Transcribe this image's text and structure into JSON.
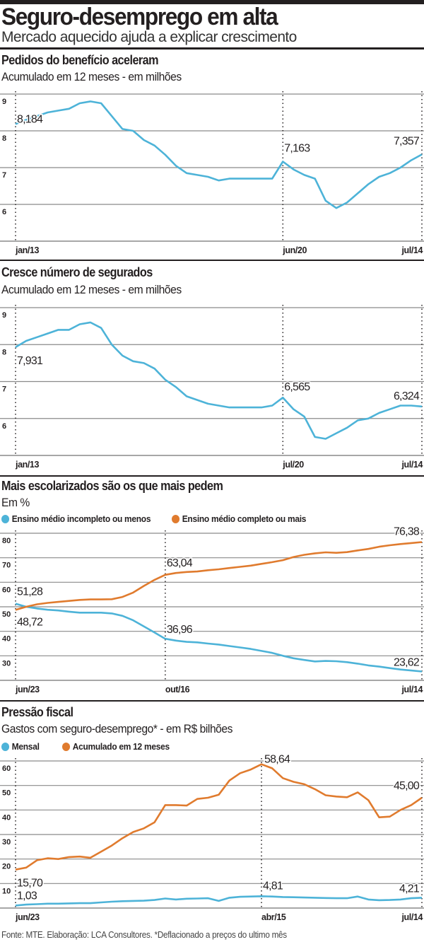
{
  "header": {
    "title": "Seguro-desemprego em alta",
    "subtitle": "Mercado aquecido ajuda a explicar crescimento"
  },
  "footer": "Fonte: MTE. Elaboração: LCA Consultores. *Deflacionado a preços do ultimo mês",
  "colors": {
    "blue": "#4db3d8",
    "orange": "#e07b2e",
    "text": "#231f20",
    "grid": "#888888"
  },
  "chart_data": [
    {
      "type": "line",
      "title": "Pedidos do benefício aceleram",
      "subtitle": "Acumulado em 12 meses - em milhões",
      "ylim": [
        5,
        9
      ],
      "yticks": [
        "9",
        "8",
        "7",
        "6"
      ],
      "ytick_values": [
        9,
        8,
        7,
        6
      ],
      "grid": true,
      "xticks": [
        {
          "index": 0,
          "label": "jan/13"
        },
        {
          "index": 25,
          "label": "jun/20"
        },
        {
          "index": 38,
          "label": "jul/14"
        }
      ],
      "series": [
        {
          "color": "#4db3d8",
          "values": [
            8.184,
            8.3,
            8.4,
            8.5,
            8.55,
            8.6,
            8.75,
            8.8,
            8.75,
            8.4,
            8.05,
            8.0,
            7.75,
            7.6,
            7.35,
            7.05,
            6.85,
            6.8,
            6.75,
            6.65,
            6.7,
            6.7,
            6.7,
            6.7,
            6.7,
            7.163,
            6.95,
            6.8,
            6.7,
            6.1,
            5.9,
            6.05,
            6.3,
            6.55,
            6.75,
            6.85,
            7.0,
            7.2,
            7.357
          ]
        }
      ],
      "annotations": [
        {
          "series": 0,
          "index": 0,
          "text": "8,184"
        },
        {
          "series": 0,
          "index": 25,
          "text": "7,163"
        },
        {
          "series": 0,
          "index": 38,
          "text": "7,357"
        }
      ]
    },
    {
      "type": "line",
      "title": "Cresce número de segurados",
      "subtitle": "Acumulado em 12 meses - em milhões",
      "ylim": [
        5,
        9
      ],
      "yticks": [
        "9",
        "8",
        "7",
        "6"
      ],
      "ytick_values": [
        9,
        8,
        7,
        6
      ],
      "grid": true,
      "xticks": [
        {
          "index": 0,
          "label": "jan/13"
        },
        {
          "index": 25,
          "label": "jul/20"
        },
        {
          "index": 38,
          "label": "jul/14"
        }
      ],
      "series": [
        {
          "color": "#4db3d8",
          "values": [
            7.931,
            8.1,
            8.2,
            8.3,
            8.4,
            8.4,
            8.55,
            8.6,
            8.45,
            8.0,
            7.7,
            7.55,
            7.5,
            7.35,
            7.05,
            6.85,
            6.6,
            6.5,
            6.4,
            6.35,
            6.3,
            6.3,
            6.3,
            6.3,
            6.35,
            6.565,
            6.25,
            6.05,
            5.5,
            5.45,
            5.6,
            5.75,
            5.95,
            6.0,
            6.15,
            6.25,
            6.35,
            6.35,
            6.324
          ]
        }
      ],
      "annotations": [
        {
          "series": 0,
          "index": 0,
          "text": "7,931"
        },
        {
          "series": 0,
          "index": 25,
          "text": "6,565"
        },
        {
          "series": 0,
          "index": 38,
          "text": "6,324"
        }
      ]
    },
    {
      "type": "line",
      "title": "Mais escolarizados são os que mais pedem",
      "subtitle": "Em %",
      "ylim": [
        20,
        80
      ],
      "yticks": [
        "80",
        "70",
        "60",
        "50",
        "40",
        "30"
      ],
      "ytick_values": [
        80,
        70,
        60,
        50,
        40,
        30
      ],
      "grid": true,
      "legend": "top-left",
      "xticks": [
        {
          "index": 0,
          "label": "jun/23"
        },
        {
          "index": 14,
          "label": "out/16"
        },
        {
          "index": 38,
          "label": "jul/14"
        }
      ],
      "series": [
        {
          "name": "Ensino médio incompleto ou menos",
          "color": "#4db3d8",
          "values": [
            51.28,
            50.0,
            49.3,
            48.8,
            48.5,
            48.0,
            47.6,
            47.6,
            47.6,
            47.3,
            46.3,
            44.5,
            42.0,
            39.5,
            36.96,
            36.2,
            35.7,
            35.5,
            35.0,
            34.6,
            34.0,
            33.4,
            32.8,
            32.0,
            31.2,
            30.0,
            29.0,
            28.3,
            27.7,
            27.9,
            27.8,
            27.4,
            26.8,
            26.1,
            25.6,
            25.0,
            24.4,
            24.0,
            23.62
          ]
        },
        {
          "name": "Ensino médio completo ou mais",
          "color": "#e07b2e",
          "values": [
            48.72,
            50.0,
            51.0,
            51.6,
            52.0,
            52.4,
            52.8,
            53.0,
            53.0,
            53.1,
            54.0,
            55.8,
            58.5,
            61.0,
            63.04,
            63.8,
            64.2,
            64.4,
            64.9,
            65.3,
            65.8,
            66.3,
            66.8,
            67.5,
            68.2,
            69.0,
            70.3,
            71.2,
            71.8,
            72.2,
            72.0,
            72.3,
            73.0,
            73.6,
            74.5,
            75.1,
            75.6,
            76.0,
            76.38
          ]
        }
      ],
      "annotations": [
        {
          "series": 0,
          "index": 0,
          "text": "51,28"
        },
        {
          "series": 1,
          "index": 0,
          "text": "48,72"
        },
        {
          "series": 1,
          "index": 14,
          "text": "63,04"
        },
        {
          "series": 0,
          "index": 14,
          "text": "36,96"
        },
        {
          "series": 1,
          "index": 38,
          "text": "76,38"
        },
        {
          "series": 0,
          "index": 38,
          "text": "23,62"
        }
      ]
    },
    {
      "type": "line",
      "title": "Pressão fiscal",
      "subtitle": "Gastos com seguro-desemprego* - em R$ bilhões",
      "ylim": [
        0,
        60
      ],
      "yticks": [
        "60",
        "50",
        "40",
        "30",
        "20",
        "10"
      ],
      "ytick_values": [
        60,
        50,
        40,
        30,
        20,
        10
      ],
      "grid": true,
      "legend": "top-left",
      "xticks": [
        {
          "index": 0,
          "label": "jun/23"
        },
        {
          "index": 23,
          "label": "abr/15"
        },
        {
          "index": 38,
          "label": "jul/14"
        }
      ],
      "series": [
        {
          "name": "Mensal",
          "color": "#4db3d8",
          "values": [
            1.03,
            1.4,
            1.6,
            1.8,
            1.8,
            1.9,
            2.0,
            2.0,
            2.3,
            2.6,
            2.8,
            2.9,
            3.0,
            3.3,
            3.9,
            3.5,
            3.8,
            3.9,
            4.0,
            2.9,
            4.2,
            4.6,
            4.7,
            4.81,
            4.7,
            4.5,
            4.4,
            4.3,
            4.2,
            4.1,
            4.0,
            4.0,
            4.7,
            3.5,
            3.2,
            3.3,
            3.5,
            4.0,
            4.21
          ]
        },
        {
          "name": "Acumulado em 12 meses",
          "color": "#e07b2e",
          "values": [
            15.7,
            16.5,
            19.5,
            20.3,
            20.0,
            20.8,
            21.0,
            20.5,
            23.0,
            25.5,
            28.5,
            31.0,
            32.5,
            35.0,
            42.0,
            42.0,
            41.8,
            44.5,
            45.0,
            46.2,
            52.0,
            55.0,
            56.5,
            58.64,
            57.0,
            53.0,
            51.5,
            50.5,
            48.5,
            46.0,
            45.5,
            45.2,
            47.2,
            44.0,
            37.0,
            37.3,
            40.0,
            42.0,
            45.0
          ]
        }
      ],
      "annotations": [
        {
          "series": 1,
          "index": 0,
          "text": "15,70"
        },
        {
          "series": 0,
          "index": 0,
          "text": "1,03"
        },
        {
          "series": 1,
          "index": 23,
          "text": "58,64"
        },
        {
          "series": 0,
          "index": 23,
          "text": "4,81"
        },
        {
          "series": 1,
          "index": 38,
          "text": "45,00"
        },
        {
          "series": 0,
          "index": 38,
          "text": "4,21"
        }
      ]
    }
  ]
}
